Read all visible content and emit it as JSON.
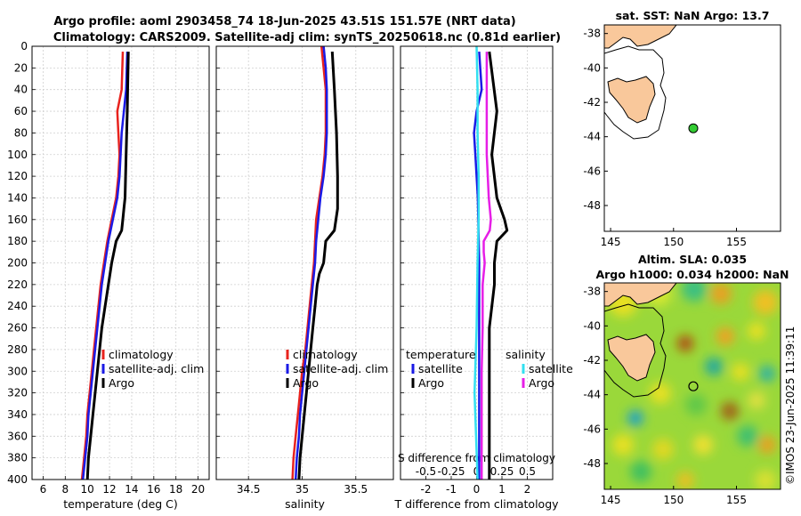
{
  "header": {
    "title_line1": "Argo profile: aoml 2903458_74 18-Jun-2025 43.51S 151.57E (NRT data)",
    "title_line2": "Climatology: CARS2009. Satellite-adj clim: synTS_20250618.nc (0.81d earlier)"
  },
  "watermark": "©IMOS 23-Jun-2025 11:39:11",
  "colors": {
    "climatology": "#e8231e",
    "satellite": "#1a1ae6",
    "argo": "#000000",
    "sal_satellite": "#33e0f0",
    "sal_argo": "#e61ee6",
    "land": "#f9c89b",
    "float_marker": "#33cc33",
    "grid": "#d0d0d0"
  },
  "chart_data": [
    {
      "id": "temperature",
      "type": "line",
      "xlabel": "temperature (deg C)",
      "ylabel": "",
      "xlim": [
        5,
        21
      ],
      "ylim": [
        400,
        0
      ],
      "xticks": [
        6,
        8,
        10,
        12,
        14,
        16,
        18,
        20
      ],
      "yticks": [
        0,
        20,
        40,
        60,
        80,
        100,
        120,
        140,
        160,
        180,
        200,
        220,
        240,
        260,
        280,
        300,
        320,
        340,
        360,
        380,
        400
      ],
      "legend": {
        "position": "lower-right",
        "entries": [
          "climatology",
          "satellite-adj. clim",
          "Argo"
        ]
      },
      "series": [
        {
          "name": "climatology",
          "color_key": "climatology",
          "depth": [
            5,
            40,
            60,
            80,
            100,
            120,
            140,
            160,
            180,
            200,
            220,
            240,
            260,
            280,
            300,
            320,
            340,
            360,
            380,
            400
          ],
          "values": [
            13.2,
            13.1,
            12.7,
            12.8,
            12.9,
            12.8,
            12.6,
            12.2,
            11.8,
            11.5,
            11.2,
            11.0,
            10.8,
            10.6,
            10.4,
            10.2,
            10.0,
            9.9,
            9.7,
            9.5
          ]
        },
        {
          "name": "satellite-adj. clim",
          "color_key": "satellite",
          "depth": [
            5,
            40,
            60,
            80,
            100,
            120,
            140,
            160,
            180,
            200,
            220,
            240,
            260,
            280,
            300,
            320,
            340,
            360,
            380,
            400
          ],
          "values": [
            13.6,
            13.5,
            13.3,
            13.1,
            13.0,
            12.9,
            12.7,
            12.3,
            11.9,
            11.6,
            11.3,
            11.1,
            10.9,
            10.7,
            10.5,
            10.3,
            10.1,
            10.0,
            9.8,
            9.6
          ]
        },
        {
          "name": "Argo",
          "color_key": "argo",
          "depth": [
            5,
            60,
            100,
            140,
            150,
            160,
            170,
            180,
            200,
            220,
            240,
            260,
            280,
            300,
            320,
            340,
            360,
            380,
            400
          ],
          "values": [
            13.7,
            13.6,
            13.5,
            13.4,
            13.3,
            13.2,
            13.1,
            12.6,
            12.2,
            11.9,
            11.6,
            11.3,
            11.1,
            10.9,
            10.7,
            10.5,
            10.3,
            10.1,
            10.0
          ]
        }
      ]
    },
    {
      "id": "salinity",
      "type": "line",
      "xlabel": "salinity",
      "ylabel": "",
      "xlim": [
        34.2,
        35.85
      ],
      "ylim": [
        400,
        0
      ],
      "xticks": [
        34.5,
        35,
        35.5
      ],
      "yticks": [
        0,
        20,
        40,
        60,
        80,
        100,
        120,
        140,
        160,
        180,
        200,
        220,
        240,
        260,
        280,
        300,
        320,
        340,
        360,
        380,
        400
      ],
      "legend": {
        "position": "lower-right",
        "entries": [
          "climatology",
          "satellite-adj. clim",
          "Argo"
        ]
      },
      "series": [
        {
          "name": "climatology",
          "color_key": "climatology",
          "depth": [
            0,
            20,
            40,
            60,
            80,
            100,
            120,
            140,
            160,
            180,
            200,
            220,
            240,
            260,
            280,
            300,
            320,
            340,
            360,
            380,
            400
          ],
          "values": [
            35.18,
            35.2,
            35.22,
            35.22,
            35.22,
            35.21,
            35.19,
            35.16,
            35.13,
            35.12,
            35.11,
            35.09,
            35.07,
            35.05,
            35.03,
            35.0,
            34.98,
            34.96,
            34.94,
            34.92,
            34.91
          ]
        },
        {
          "name": "satellite-adj. clim",
          "color_key": "satellite",
          "depth": [
            0,
            20,
            40,
            60,
            80,
            100,
            120,
            140,
            160,
            180,
            200,
            220,
            240,
            260,
            280,
            300,
            320,
            340,
            360,
            380,
            400
          ],
          "values": [
            35.2,
            35.22,
            35.23,
            35.23,
            35.23,
            35.22,
            35.2,
            35.17,
            35.15,
            35.13,
            35.12,
            35.1,
            35.08,
            35.06,
            35.04,
            35.02,
            35.0,
            34.98,
            34.97,
            34.95,
            34.94
          ]
        },
        {
          "name": "Argo",
          "color_key": "argo",
          "depth": [
            5,
            40,
            80,
            120,
            150,
            170,
            180,
            200,
            210,
            220,
            240,
            260,
            280,
            300,
            320,
            340,
            360,
            380,
            400
          ],
          "values": [
            35.28,
            35.3,
            35.32,
            35.33,
            35.33,
            35.3,
            35.22,
            35.2,
            35.16,
            35.14,
            35.12,
            35.1,
            35.08,
            35.06,
            35.04,
            35.02,
            35.0,
            34.98,
            34.97
          ]
        }
      ]
    },
    {
      "id": "differences",
      "type": "line",
      "xlabel": "T difference from climatology",
      "xlabel_top": "S difference from climatology",
      "xlim": [
        -3,
        3
      ],
      "ylim": [
        400,
        0
      ],
      "xticks": [
        -2,
        -1,
        0,
        1,
        2
      ],
      "xtick_labels": [
        "-2",
        "-1",
        "0",
        "1",
        "2"
      ],
      "sticks": [
        -0.5,
        -0.25,
        0,
        0.25,
        0.5
      ],
      "stick_labels": [
        "-0.5",
        "-0.25",
        "0",
        "0.25",
        "0.5"
      ],
      "s_scale": 4,
      "yticks": [
        0,
        20,
        40,
        60,
        80,
        100,
        120,
        140,
        160,
        180,
        200,
        220,
        240,
        260,
        280,
        300,
        320,
        340,
        360,
        380,
        400
      ],
      "legend_t": {
        "title": "temperature",
        "entries": [
          "satellite",
          "Argo"
        ]
      },
      "legend_s": {
        "title": "salinity",
        "entries": [
          "satellite",
          "Argo"
        ]
      },
      "series": [
        {
          "name": "T satellite",
          "color_key": "satellite",
          "depth": [
            5,
            40,
            60,
            80,
            100,
            140,
            200,
            300,
            400
          ],
          "values": [
            0.1,
            0.2,
            0.0,
            -0.1,
            -0.05,
            0.05,
            0.1,
            0.1,
            0.1
          ]
        },
        {
          "name": "T Argo",
          "color_key": "argo",
          "depth": [
            5,
            60,
            100,
            140,
            160,
            170,
            180,
            200,
            220,
            260,
            300,
            350,
            400
          ],
          "values": [
            0.5,
            0.8,
            0.6,
            0.8,
            1.1,
            1.2,
            0.8,
            0.7,
            0.7,
            0.5,
            0.5,
            0.5,
            0.5
          ]
        },
        {
          "name": "S satellite",
          "color_key": "sal_satellite",
          "s_scaled": true,
          "depth": [
            0,
            40,
            80,
            120,
            160,
            200,
            260,
            320,
            400
          ],
          "values": [
            0.0,
            0.01,
            0.01,
            0.02,
            0.02,
            0.01,
            0.0,
            -0.02,
            0.01
          ]
        },
        {
          "name": "S Argo",
          "color_key": "sal_argo",
          "s_scaled": true,
          "depth": [
            5,
            60,
            100,
            140,
            160,
            170,
            180,
            190,
            200,
            220,
            260,
            300,
            350,
            400
          ],
          "values": [
            0.1,
            0.1,
            0.1,
            0.12,
            0.14,
            0.13,
            0.07,
            0.07,
            0.08,
            0.06,
            0.06,
            0.05,
            0.05,
            0.05
          ]
        }
      ]
    },
    {
      "id": "sst-map",
      "type": "map",
      "title": "sat. SST: NaN Argo: 13.7",
      "lon_range": [
        144.5,
        158.5
      ],
      "lat_range": [
        -49.5,
        -37.5
      ],
      "xticks": [
        145,
        150,
        155
      ],
      "yticks": [
        -38,
        -40,
        -42,
        -44,
        -46,
        -48
      ],
      "float_lon": 151.57,
      "float_lat": -43.51
    },
    {
      "id": "sla-map",
      "type": "map",
      "title_line1": "Altim. SLA: 0.035",
      "title_line2": "Argo h1000: 0.034 h2000: NaN",
      "lon_range": [
        144.5,
        158.5
      ],
      "lat_range": [
        -49.5,
        -37.5
      ],
      "xticks": [
        145,
        150,
        155
      ],
      "yticks": [
        -38,
        -40,
        -42,
        -44,
        -46,
        -48
      ],
      "float_lon": 151.57,
      "float_lat": -43.51
    }
  ]
}
